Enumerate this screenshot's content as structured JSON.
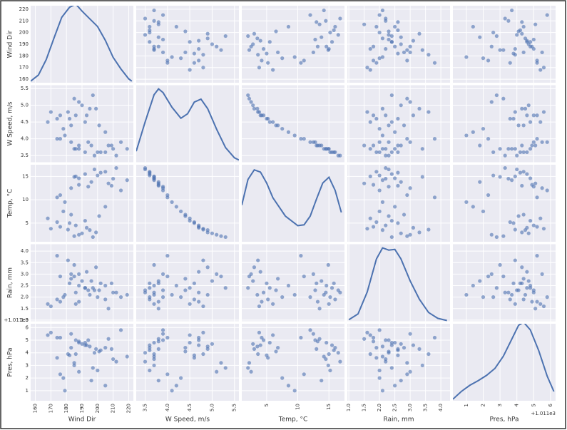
{
  "chart_data": {
    "type": "scatter_matrix",
    "color": "#4c72b0",
    "grid": true,
    "variables": [
      {
        "name": "Wind Dir",
        "lim": [
          157,
          223
        ],
        "ticks": [
          160,
          170,
          180,
          190,
          200,
          210,
          220
        ],
        "values": [
          195,
          182,
          176,
          188,
          201,
          170,
          185,
          192,
          178,
          199,
          186,
          174,
          190,
          205,
          181,
          168,
          197,
          183,
          179,
          193,
          210,
          188,
          202,
          215,
          185,
          198,
          207,
          176,
          192,
          219,
          183,
          205,
          196,
          212,
          188,
          174,
          200,
          209,
          186,
          194
        ],
        "kde": {
          "x": [
            157,
            162,
            167,
            172,
            177,
            182,
            186,
            190,
            195,
            200,
            205,
            210,
            215,
            220,
            222
          ],
          "y": [
            0.02,
            0.1,
            0.3,
            0.58,
            0.85,
            0.98,
            1.02,
            0.93,
            0.83,
            0.73,
            0.55,
            0.33,
            0.18,
            0.05,
            0.02
          ]
        },
        "kde_ylim": [
          0,
          1
        ]
      },
      {
        "name": "W Speed, m/s",
        "lim": [
          3.3,
          5.6
        ],
        "ticks": [
          3.5,
          {
            "value": 4,
            "label": "4.0"
          },
          4.5,
          {
            "value": 5,
            "label": "5.0"
          },
          5.5
        ],
        "values": [
          4.9,
          4.6,
          4.7,
          5.1,
          4.4,
          4.8,
          5.2,
          4.5,
          4.3,
          4.9,
          4.7,
          4.6,
          5.0,
          4.2,
          4.8,
          4.5,
          5.3,
          4.4,
          4.1,
          4.7,
          3.7,
          3.8,
          3.6,
          3.9,
          3.7,
          3.5,
          3.8,
          4.0,
          3.6,
          3.7,
          3.9,
          3.6,
          3.8,
          3.5,
          3.7,
          4.0,
          3.6,
          3.8,
          3.7,
          3.9
        ],
        "kde": {
          "x": [
            3.3,
            3.5,
            3.7,
            3.8,
            3.9,
            4.1,
            4.3,
            4.45,
            4.6,
            4.75,
            4.9,
            5.1,
            5.3,
            5.5,
            5.6
          ],
          "y": [
            0.15,
            0.55,
            0.92,
            1.0,
            0.95,
            0.75,
            0.6,
            0.66,
            0.82,
            0.86,
            0.73,
            0.45,
            0.2,
            0.06,
            0.03
          ]
        },
        "kde_ylim": [
          0,
          1.05
        ]
      },
      {
        "name": "Temp, °C",
        "lim": [
          1,
          17.5
        ],
        "ticks": [
          5,
          10,
          15
        ],
        "values": [
          3.5,
          5.0,
          4.2,
          2.5,
          6.5,
          3.8,
          2.2,
          5.5,
          7.5,
          3.0,
          4.5,
          5.2,
          2.8,
          8.5,
          3.6,
          6.0,
          2.0,
          6.8,
          9.5,
          4.0,
          14.5,
          13.2,
          15.8,
          12.0,
          14.9,
          16.5,
          13.5,
          11.0,
          15.5,
          14.2,
          12.5,
          16.0,
          13.8,
          16.8,
          14.6,
          10.5,
          15.2,
          13.0,
          15.0,
          12.8
        ],
        "kde": {
          "x": [
            1,
            2,
            3,
            4,
            5,
            6,
            8,
            10,
            11,
            12,
            13,
            14,
            15,
            16,
            17
          ],
          "y": [
            0.5,
            0.85,
            0.98,
            0.95,
            0.8,
            0.6,
            0.35,
            0.22,
            0.23,
            0.35,
            0.58,
            0.8,
            0.88,
            0.7,
            0.4
          ]
        },
        "kde_ylim": [
          0,
          1.05
        ]
      },
      {
        "name": "Rain, mm",
        "lim": [
          0.95,
          4.3
        ],
        "ticks": [
          {
            "value": 1,
            "label": "1.0"
          },
          1.5,
          {
            "value": 2,
            "label": "2.0"
          },
          2.5,
          {
            "value": 3,
            "label": "3.0"
          },
          3.5,
          {
            "value": 4,
            "label": "4.0"
          }
        ],
        "values": [
          2.1,
          2.6,
          1.8,
          3.0,
          2.3,
          1.6,
          2.9,
          2.4,
          2.0,
          3.3,
          2.2,
          1.9,
          2.7,
          2.5,
          3.6,
          1.7,
          2.4,
          2.8,
          2.1,
          3.1,
          2.2,
          1.8,
          2.6,
          2.0,
          3.4,
          2.3,
          1.5,
          2.9,
          2.4,
          2.1,
          3.0,
          1.9,
          2.7,
          2.2,
          2.5,
          3.8,
          2.0,
          2.6,
          1.7,
          2.3
        ],
        "kde": {
          "x": [
            1.0,
            1.3,
            1.6,
            1.9,
            2.1,
            2.3,
            2.5,
            2.7,
            3.0,
            3.3,
            3.6,
            3.9,
            4.2
          ],
          "y": [
            0.02,
            0.1,
            0.4,
            0.85,
            1.0,
            0.97,
            0.98,
            0.85,
            0.55,
            0.3,
            0.12,
            0.04,
            0.01
          ]
        },
        "kde_ylim": [
          0,
          1.05
        ]
      },
      {
        "name": "Pres, hPa",
        "lim": [
          0.2,
          6.3
        ],
        "ticks": [
          1,
          2,
          3,
          4,
          5,
          6
        ],
        "offset_label": "+1.011e3",
        "values": [
          4.5,
          3.8,
          5.2,
          2.5,
          4.1,
          5.6,
          3.2,
          4.8,
          2.0,
          4.3,
          5.0,
          3.6,
          4.7,
          1.4,
          3.9,
          5.4,
          2.8,
          4.4,
          1.0,
          4.6,
          3.5,
          4.9,
          4.2,
          5.8,
          3.0,
          4.0,
          5.1,
          2.3,
          4.6,
          3.7,
          5.5,
          4.4,
          1.8,
          3.3,
          4.8,
          5.2,
          2.6,
          4.3,
          3.9,
          5.0
        ],
        "kde": {
          "x": [
            0.2,
            0.7,
            1.2,
            1.7,
            2.2,
            2.7,
            3.2,
            3.7,
            4.1,
            4.4,
            4.8,
            5.3,
            5.8,
            6.2
          ],
          "y": [
            0.02,
            0.12,
            0.2,
            0.26,
            0.33,
            0.42,
            0.58,
            0.8,
            0.98,
            1.02,
            0.92,
            0.65,
            0.32,
            0.12
          ]
        },
        "kde_ylim": [
          0,
          1
        ]
      }
    ]
  }
}
